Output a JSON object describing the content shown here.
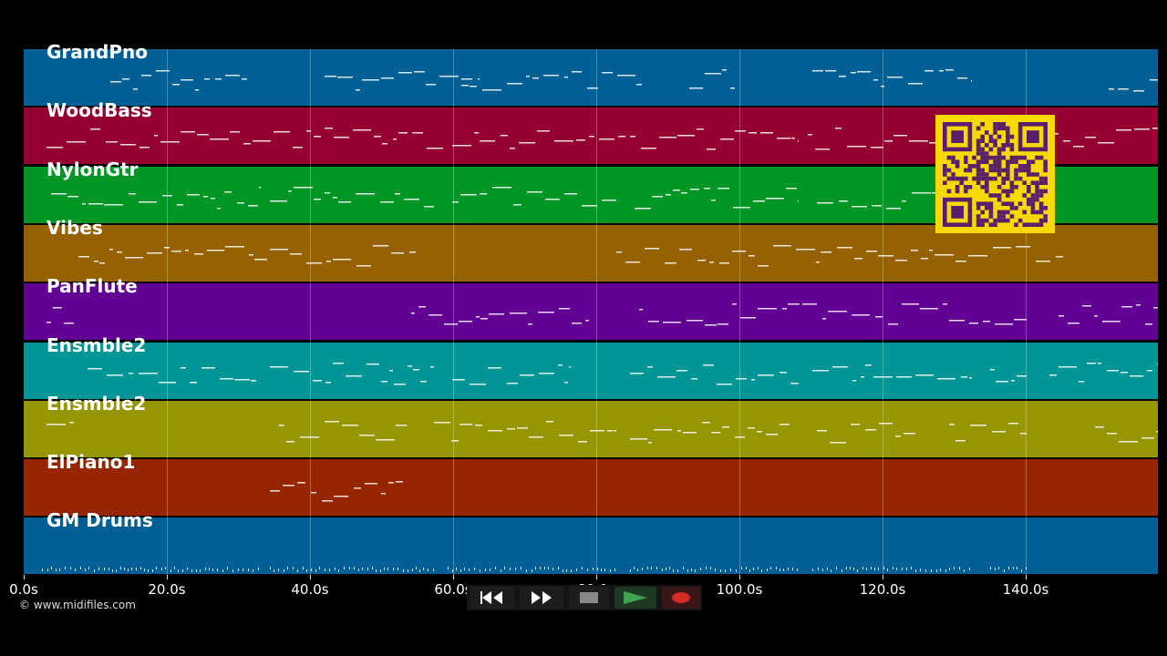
{
  "tracks": [
    {
      "name": "GrandPno",
      "color": "#005f94"
    },
    {
      "name": "WoodBass",
      "color": "#940031"
    },
    {
      "name": "NylonGtr",
      "color": "#009626"
    },
    {
      "name": "Vibes",
      "color": "#966100"
    },
    {
      "name": "PanFlute",
      "color": "#620094"
    },
    {
      "name": "Ensmble2",
      "color": "#009696"
    },
    {
      "name": "Ensmble2",
      "color": "#969600"
    },
    {
      "name": "ElPiano1",
      "color": "#962600"
    },
    {
      "name": "GM Drums",
      "color": "#005f94"
    }
  ],
  "axis": {
    "unit_max_seconds": 159,
    "ticks": [
      {
        "value": 0,
        "label": "0.0s"
      },
      {
        "value": 20,
        "label": "20.0s"
      },
      {
        "value": 40,
        "label": "40.0s"
      },
      {
        "value": 60,
        "label": "60.0s"
      },
      {
        "value": 80,
        "label": "80.0s"
      },
      {
        "value": 100,
        "label": "100.0s"
      },
      {
        "value": 120,
        "label": "120.0s"
      },
      {
        "value": 140,
        "label": "140.0s"
      }
    ]
  },
  "transport": {
    "buttons": [
      {
        "name": "rewind-button",
        "icon": "rewind-icon",
        "color": "#ffffff"
      },
      {
        "name": "fast-forward-button",
        "icon": "fast-forward-icon",
        "color": "#ffffff"
      },
      {
        "name": "stop-button",
        "icon": "stop-icon",
        "color": "#888888"
      },
      {
        "name": "play-button",
        "icon": "play-icon",
        "color": "#3fa34d"
      },
      {
        "name": "record-button",
        "icon": "record-icon",
        "color": "#d42a2a"
      }
    ]
  },
  "copyright": "© www.midifiles.com",
  "qr": {
    "icon": "qr-code-icon",
    "color": "#f5d900",
    "fg": "#5a1f6b"
  }
}
